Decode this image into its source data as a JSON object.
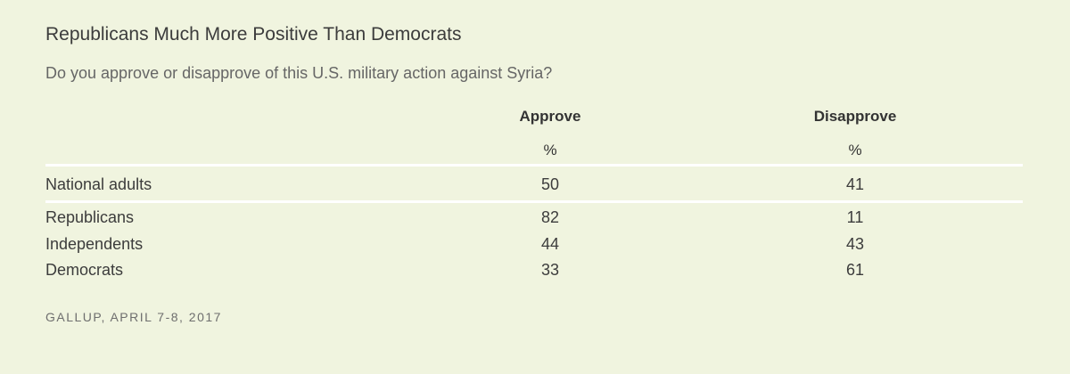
{
  "chart_data": {
    "type": "table",
    "title": "Republicans Much More Positive Than Democrats",
    "subtitle": "Do you approve or disapprove of this U.S. military action against Syria?",
    "columns": [
      {
        "label": "Approve",
        "unit": "%"
      },
      {
        "label": "Disapprove",
        "unit": "%"
      }
    ],
    "rows": [
      {
        "label": "National adults",
        "values": [
          "50",
          "41"
        ]
      },
      {
        "label": "Republicans",
        "values": [
          "82",
          "11"
        ]
      },
      {
        "label": "Independents",
        "values": [
          "44",
          "43"
        ]
      },
      {
        "label": "Democrats",
        "values": [
          "33",
          "61"
        ]
      }
    ],
    "source": "GALLUP, APRIL 7-8, 2017"
  },
  "colors": {
    "background": "#f0f4df",
    "separator": "#ffffff"
  }
}
